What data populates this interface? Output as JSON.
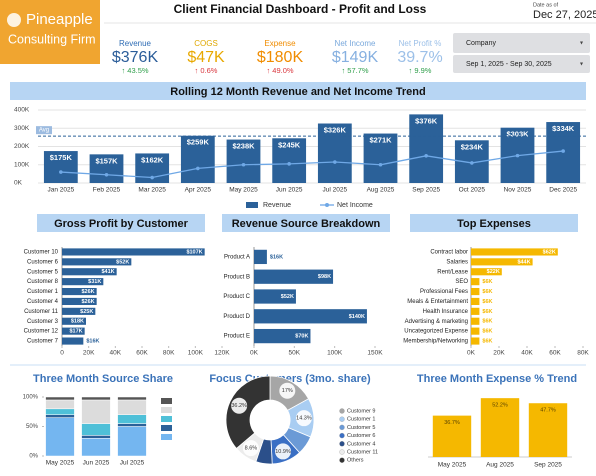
{
  "header": {
    "logo": [
      "Pineapple",
      "Consulting Firm"
    ],
    "title": "Client Financial Dashboard - Profit and Loss",
    "date_caption": "Date as of",
    "date": "Dec 27, 2025"
  },
  "kpis": [
    {
      "label": "Revenue",
      "value": "$376K",
      "change": "↑ 43.5%",
      "color": "#2f6db5",
      "value_color": "#2b5d99",
      "change_color": "#2e9e4a"
    },
    {
      "label": "COGS",
      "value": "$47K",
      "change": "↑ 0.6%",
      "color": "#e0a800",
      "value_color": "#e8a800",
      "change_color": "#d9363e"
    },
    {
      "label": "Expense",
      "value": "$180K",
      "change": "↑ 49.0%",
      "color": "#f08c00",
      "value_color": "#f08c00",
      "change_color": "#d9363e"
    },
    {
      "label": "Net Income",
      "value": "$149K",
      "change": "↑ 57.7%",
      "color": "#7aa9dc",
      "value_color": "#86b0e0",
      "change_color": "#2e9e4a"
    },
    {
      "label": "Net Profit %",
      "value": "39.7%",
      "change": "↑ 9.9%",
      "color": "#9cc0e8",
      "value_color": "#9cc0e8",
      "change_color": "#2e9e4a"
    }
  ],
  "filters": [
    "Company",
    "Sep 1, 2025 - Sep 30, 2025"
  ],
  "chart_data": [
    {
      "type": "bar_line",
      "title": "Rolling 12 Month Revenue and Net Income Trend",
      "categories": [
        "Jan 2025",
        "Feb 2025",
        "Mar 2025",
        "Apr 2025",
        "May 2025",
        "Jun 2025",
        "Jul 2025",
        "Aug 2025",
        "Sep 2025",
        "Oct 2025",
        "Nov 2025",
        "Dec 2025"
      ],
      "series": [
        {
          "name": "Revenue",
          "type": "bar",
          "color": "#2b6199",
          "values": [
            175,
            157,
            162,
            259,
            238,
            245,
            326,
            271,
            376,
            234,
            303,
            334
          ],
          "value_labels": [
            "$175K",
            "$157K",
            "$162K",
            "$259K",
            "$238K",
            "$245K",
            "$326K",
            "$271K",
            "$376K",
            "$234K",
            "$303K",
            "$334K"
          ]
        },
        {
          "name": "Net Income",
          "type": "line",
          "color": "#6fa8e6",
          "values": [
            60,
            45,
            30,
            80,
            100,
            105,
            115,
            100,
            149,
            110,
            150,
            175
          ]
        }
      ],
      "ylim": [
        0,
        400
      ],
      "yticks": [
        {
          "value": 0,
          "label": "0K"
        },
        {
          "value": 100,
          "label": "100K"
        },
        {
          "value": 200,
          "label": "200K"
        },
        {
          "value": 300,
          "label": "300K"
        },
        {
          "value": 400,
          "label": "400K"
        }
      ],
      "avg": {
        "label": "Avg",
        "value": 256.7
      },
      "grid": true
    },
    {
      "type": "hbar",
      "title": "Gross Profit by Customer",
      "color": "#2b6199",
      "categories": [
        "Customer 10",
        "Customer 6",
        "Customer 5",
        "Customer 8",
        "Customer 1",
        "Customer 4",
        "Customer 11",
        "Customer 3",
        "Customer 12",
        "Customer 7"
      ],
      "values": [
        107,
        52,
        41,
        31,
        26,
        26,
        25,
        18,
        17,
        16
      ],
      "value_labels": [
        "$107K",
        "$52K",
        "$41K",
        "$31K",
        "$26K",
        "$26K",
        "$25K",
        "$18K",
        "$17K",
        "$16K"
      ],
      "xlim": [
        0,
        120
      ],
      "xticks": [
        0,
        {
          "value": 20,
          "label": "20K"
        },
        {
          "value": 40,
          "label": "40K"
        },
        {
          "value": 60,
          "label": "60K"
        },
        {
          "value": 80,
          "label": "80K"
        },
        {
          "value": 100,
          "label": "100K"
        },
        {
          "value": 120,
          "label": "120K"
        }
      ]
    },
    {
      "type": "hbar",
      "title": "Revenue Source Breakdown",
      "color": "#2b6199",
      "categories": [
        "Product A",
        "Product B",
        "Product C",
        "Product D",
        "Product E"
      ],
      "values": [
        16,
        98,
        52,
        140,
        70
      ],
      "value_labels": [
        "$16K",
        "$98K",
        "$52K",
        "$140K",
        "$70K"
      ],
      "xlim": [
        0,
        150
      ],
      "xticks": [
        {
          "value": 0,
          "label": "0K"
        },
        {
          "value": 50,
          "label": "50K"
        },
        {
          "value": 100,
          "label": "100K"
        },
        {
          "value": 150,
          "label": "150K"
        }
      ]
    },
    {
      "type": "hbar",
      "title": "Top Expenses",
      "color": "#f5b800",
      "categories": [
        "Contract labor",
        "Salaries",
        "Rent/Lease",
        "SEO",
        "Professional Fees",
        "Meals & Entertainment",
        "Health Insurance",
        "Advertising & marketing",
        "Uncategorized Expense",
        "Membership/Networking"
      ],
      "values": [
        62,
        44,
        22,
        6,
        6,
        6,
        6,
        6,
        6,
        6
      ],
      "value_labels": [
        "$62K",
        "$44K",
        "$22K",
        "$6K",
        "$6K",
        "$6K",
        "$6K",
        "$6K",
        "$6K",
        "$6K"
      ],
      "xlim": [
        0,
        80
      ],
      "xticks": [
        {
          "value": 0,
          "label": "0K"
        },
        {
          "value": 20,
          "label": "20K"
        },
        {
          "value": 40,
          "label": "40K"
        },
        {
          "value": 60,
          "label": "60K"
        },
        {
          "value": 80,
          "label": "80K"
        }
      ]
    },
    {
      "type": "stacked_bar",
      "title": "Three Month Source Share",
      "categories": [
        "May 2025",
        "Jun 2025",
        "Jul 2025"
      ],
      "series": [
        {
          "color": "#74b6f0",
          "values": [
            65,
            30,
            50
          ]
        },
        {
          "color": "#2b6199",
          "values": [
            5,
            5,
            5
          ]
        },
        {
          "color": "#4fc0d8",
          "values": [
            10,
            20,
            15
          ]
        },
        {
          "color": "#dcdcdc",
          "values": [
            15,
            40,
            25
          ]
        },
        {
          "color": "#555555",
          "values": [
            5,
            5,
            5
          ]
        }
      ],
      "ylim": [
        0,
        100
      ],
      "yticks": [
        {
          "value": 0,
          "label": "0%"
        },
        {
          "value": 50,
          "label": "50%"
        },
        {
          "value": 100,
          "label": "100%"
        }
      ]
    },
    {
      "type": "donut",
      "title": "Focus Customers (3mo. share)",
      "categories": [
        "Customer 9",
        "Customer 1",
        "Customer 5",
        "Customer 6",
        "Customer 4",
        "Customer 11",
        "Others"
      ],
      "values": [
        17,
        14.3,
        7,
        10.9,
        6,
        8.6,
        36.2
      ],
      "value_labels": [
        "17%",
        "14.3%",
        null,
        "10.9%",
        null,
        "8.6%",
        "36.2%"
      ],
      "colors": [
        "#a6a6a6",
        "#a9cdf2",
        "#6b9ad6",
        "#3a6fc4",
        "#2b4f8a",
        "#ececec",
        "#333333"
      ]
    },
    {
      "type": "bar",
      "title": "Three Month Expense % Trend",
      "color": "#f5b800",
      "categories": [
        "May 2025",
        "Aug 2025",
        "Sep 2025"
      ],
      "values": [
        36.7,
        52.2,
        47.7
      ],
      "value_labels": [
        "36.7%",
        "52.2%",
        "47.7%"
      ],
      "ylim": [
        0,
        55
      ]
    }
  ]
}
